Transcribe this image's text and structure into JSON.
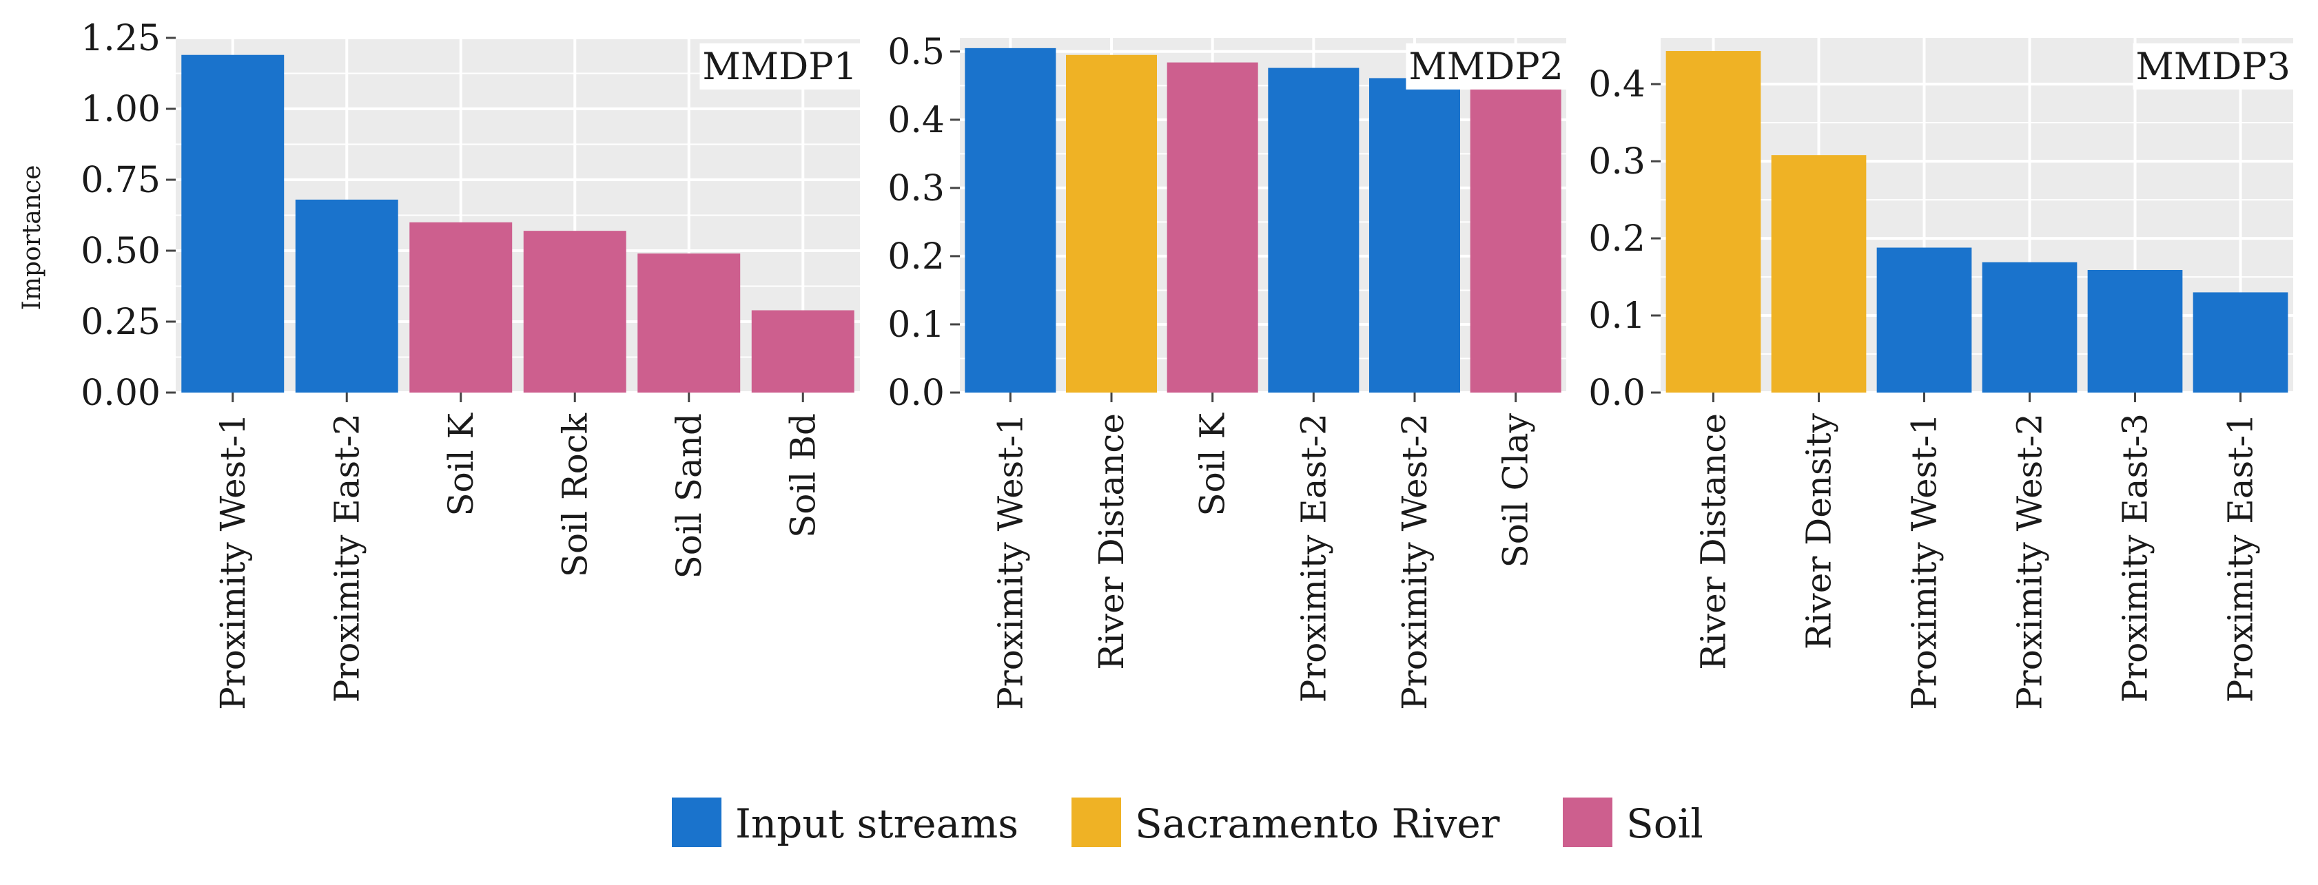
{
  "figure": {
    "ylabel": "Importance",
    "legend": [
      {
        "label": "Input streams",
        "color": "#1a73cc"
      },
      {
        "label": "Sacramento River",
        "color": "#efb225"
      },
      {
        "label": "Soil",
        "color": "#cd5f8e"
      }
    ],
    "group_colors": {
      "Input streams": "#1a73cc",
      "Sacramento River": "#efb225",
      "Soil": "#cd5f8e"
    },
    "panel_bg": "#ebebeb",
    "grid_color": "#ffffff"
  },
  "chart_data": [
    {
      "type": "bar",
      "title": "MMDP1",
      "ylabel": "Importance",
      "categories": [
        "Proximity West-1",
        "Proximity East-2",
        "Soil K",
        "Soil Rock",
        "Soil Sand",
        "Soil Bd"
      ],
      "values": [
        1.19,
        0.68,
        0.6,
        0.57,
        0.49,
        0.29
      ],
      "groups": [
        "Input streams",
        "Input streams",
        "Soil",
        "Soil",
        "Soil",
        "Soil"
      ],
      "ylim": [
        0,
        1.25
      ],
      "yticks": [
        0,
        0.25,
        0.5,
        0.75,
        1.0,
        1.25
      ],
      "ytick_labels": [
        "0.00",
        "0.25",
        "0.50",
        "0.75",
        "1.00",
        "1.25"
      ]
    },
    {
      "type": "bar",
      "title": "MMDP2",
      "ylabel": "",
      "categories": [
        "Proximity West-1",
        "River Distance",
        "Soil K",
        "Proximity East-2",
        "Proximity West-2",
        "Soil Clay"
      ],
      "values": [
        0.505,
        0.495,
        0.484,
        0.476,
        0.461,
        0.459
      ],
      "groups": [
        "Input streams",
        "Sacramento River",
        "Soil",
        "Input streams",
        "Input streams",
        "Soil"
      ],
      "ylim": [
        0,
        0.52
      ],
      "yticks": [
        0,
        0.1,
        0.2,
        0.3,
        0.4,
        0.5
      ],
      "ytick_labels": [
        "0.0",
        "0.1",
        "0.2",
        "0.3",
        "0.4",
        "0.5"
      ]
    },
    {
      "type": "bar",
      "title": "MMDP3",
      "ylabel": "",
      "categories": [
        "River Distance",
        "River Density",
        "Proximity West-1",
        "Proximity West-2",
        "Proximity East-3",
        "Proximity East-1"
      ],
      "values": [
        0.443,
        0.308,
        0.188,
        0.169,
        0.159,
        0.13
      ],
      "groups": [
        "Sacramento River",
        "Sacramento River",
        "Input streams",
        "Input streams",
        "Input streams",
        "Input streams"
      ],
      "ylim": [
        0,
        0.46
      ],
      "yticks": [
        0,
        0.1,
        0.2,
        0.3,
        0.4
      ],
      "ytick_labels": [
        "0.0",
        "0.1",
        "0.2",
        "0.3",
        "0.4"
      ]
    }
  ]
}
